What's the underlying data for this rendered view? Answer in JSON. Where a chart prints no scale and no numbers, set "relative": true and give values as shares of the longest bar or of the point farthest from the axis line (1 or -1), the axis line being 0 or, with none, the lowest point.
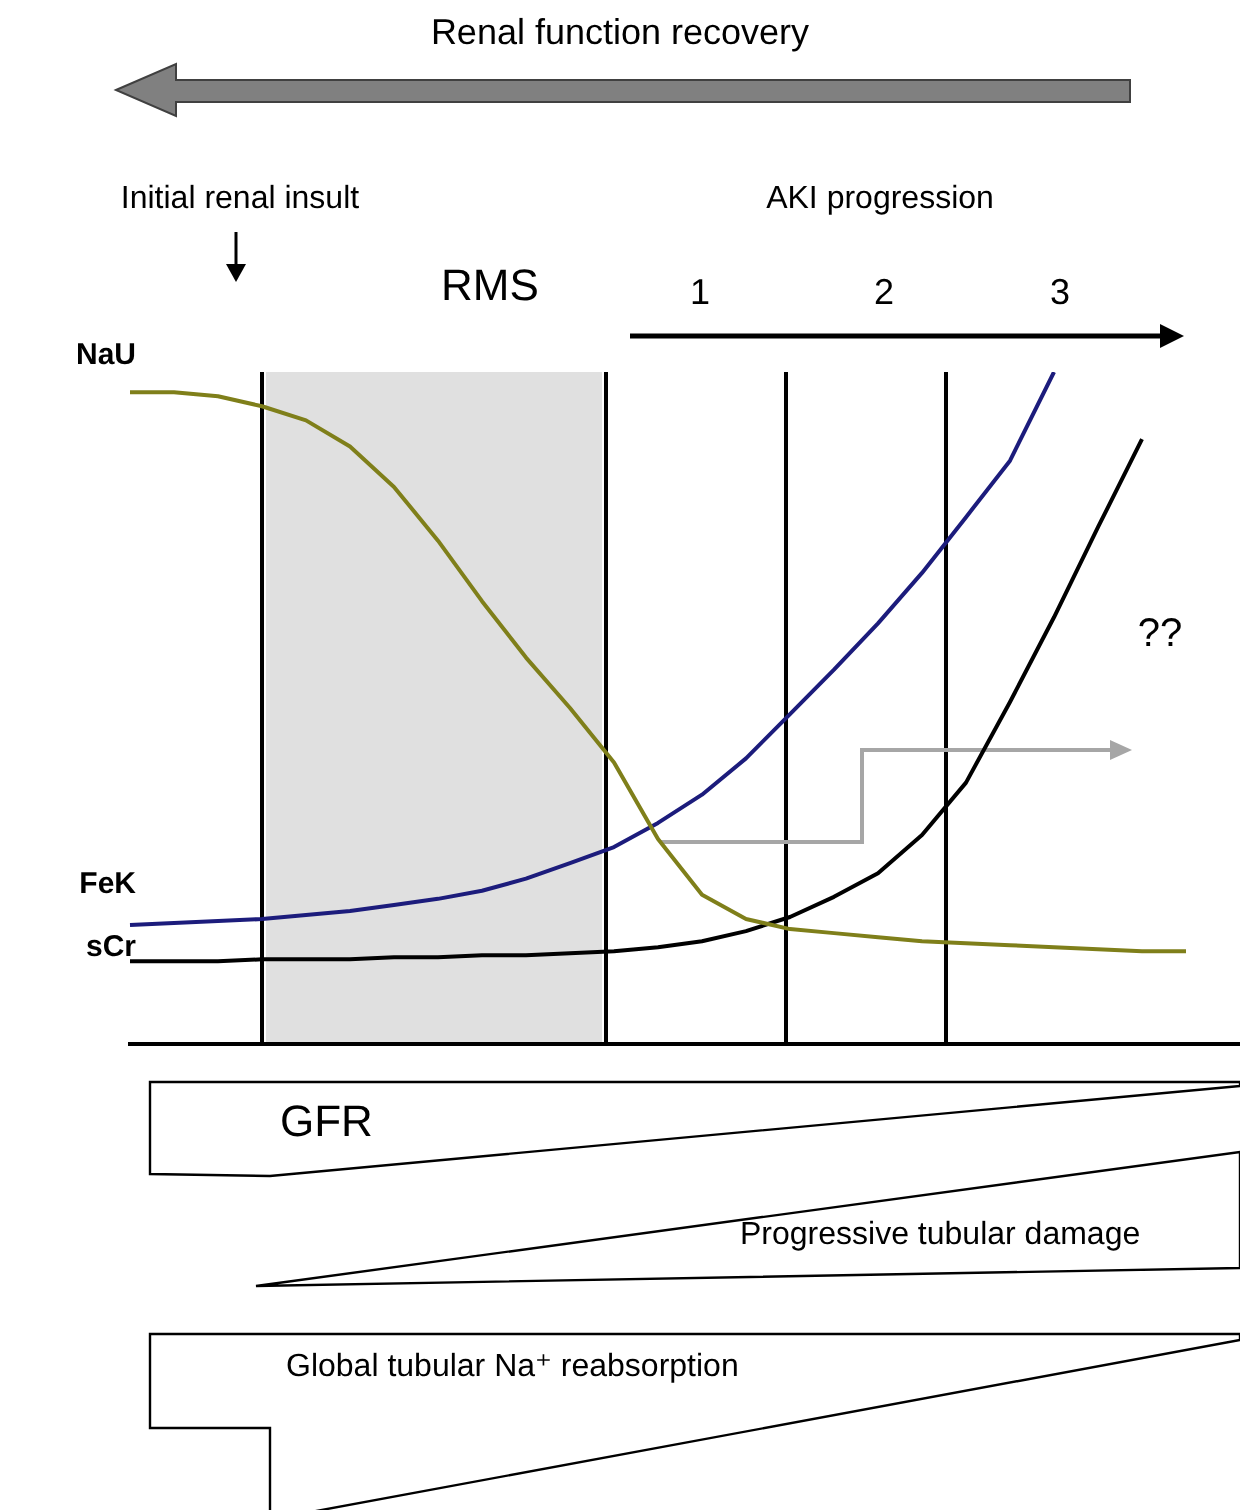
{
  "chart_data": {
    "type": "line",
    "relative": true,
    "marker": "none",
    "categories": [
      null,
      null,
      null,
      null,
      null,
      null,
      null,
      null,
      null,
      null,
      null,
      null,
      null,
      null,
      null,
      null,
      null,
      null,
      null,
      null,
      null,
      null,
      null,
      null,
      null
    ],
    "series": [
      {
        "name": "NaU",
        "color": "#7f7f1a",
        "values": [
          0.97,
          0.97,
          0.964,
          0.949,
          0.928,
          0.889,
          0.829,
          0.749,
          0.659,
          0.575,
          0.5,
          0.419,
          0.305,
          0.222,
          0.186,
          0.171,
          0.165,
          0.159,
          0.153,
          0.15,
          0.147,
          0.144,
          0.141,
          0.138,
          0.138
        ]
      },
      {
        "name": "FeK",
        "color": "#1c1c7c",
        "values": [
          0.177,
          0.18,
          0.183,
          0.186,
          0.192,
          0.198,
          0.207,
          0.216,
          0.228,
          0.246,
          0.269,
          0.293,
          0.329,
          0.371,
          0.425,
          0.491,
          0.557,
          0.626,
          0.701,
          0.784,
          0.868,
          1,
          null,
          null,
          null
        ]
      },
      {
        "name": "sCr",
        "color": "#000000",
        "values": [
          0.123,
          0.123,
          0.123,
          0.126,
          0.126,
          0.126,
          0.129,
          0.129,
          0.132,
          0.132,
          0.135,
          0.138,
          0.144,
          0.153,
          0.168,
          0.189,
          0.219,
          0.254,
          0.311,
          0.389,
          0.509,
          0.635,
          0.769,
          0.9,
          null
        ]
      }
    ],
    "annotations": [
      "Renal function recovery",
      "Initial renal insult",
      "AKI progression",
      "RMS",
      "1",
      "2",
      "3",
      "??",
      "GFR",
      "Progressive tubular damage",
      "Global tubular Na⁺ reabsorption"
    ]
  }
}
